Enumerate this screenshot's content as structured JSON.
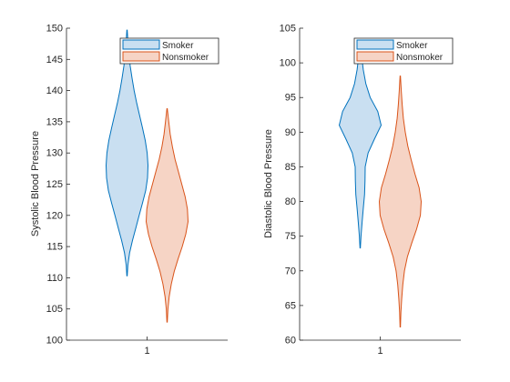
{
  "colors": {
    "smoker_edge": "#0072BD",
    "smoker_fill": "#C9DFF1",
    "nonsmoker_edge": "#D95319",
    "nonsmoker_fill": "#F6D4C5",
    "axis": "#262626"
  },
  "chart_data": [
    {
      "type": "violin",
      "ylabel": "Systolic Blood Pressure",
      "xlabel": "",
      "ylim": [
        100,
        150
      ],
      "yticks": [
        100,
        105,
        110,
        115,
        120,
        125,
        130,
        135,
        140,
        145,
        150
      ],
      "categories": [
        "1"
      ],
      "grid": false,
      "legend_position": "top-right",
      "series": [
        {
          "name": "Smoker",
          "side": "left",
          "profile": [
            [
              110.3,
              0.01
            ],
            [
              112,
              0.04
            ],
            [
              114,
              0.12
            ],
            [
              116,
              0.26
            ],
            [
              118,
              0.42
            ],
            [
              120,
              0.58
            ],
            [
              122,
              0.74
            ],
            [
              124,
              0.89
            ],
            [
              126,
              0.98
            ],
            [
              128,
              1.0
            ],
            [
              130,
              0.96
            ],
            [
              132,
              0.87
            ],
            [
              134,
              0.74
            ],
            [
              136,
              0.6
            ],
            [
              138,
              0.46
            ],
            [
              140,
              0.34
            ],
            [
              142,
              0.24
            ],
            [
              144,
              0.15
            ],
            [
              146,
              0.09
            ],
            [
              148,
              0.04
            ],
            [
              149.7,
              0.01
            ]
          ]
        },
        {
          "name": "Nonsmoker",
          "side": "right",
          "profile": [
            [
              102.9,
              0.01
            ],
            [
              105,
              0.04
            ],
            [
              107,
              0.1
            ],
            [
              109,
              0.2
            ],
            [
              111,
              0.34
            ],
            [
              113,
              0.52
            ],
            [
              115,
              0.72
            ],
            [
              117,
              0.89
            ],
            [
              119,
              1.0
            ],
            [
              121,
              0.97
            ],
            [
              123,
              0.86
            ],
            [
              125,
              0.7
            ],
            [
              127,
              0.54
            ],
            [
              129,
              0.38
            ],
            [
              131,
              0.25
            ],
            [
              133,
              0.15
            ],
            [
              135,
              0.08
            ],
            [
              137.1,
              0.01
            ]
          ]
        }
      ]
    },
    {
      "type": "violin",
      "ylabel": "Diastolic Blood Pressure",
      "xlabel": "",
      "ylim": [
        60,
        105
      ],
      "yticks": [
        60,
        65,
        70,
        75,
        80,
        85,
        90,
        95,
        100,
        105
      ],
      "categories": [
        "1"
      ],
      "grid": false,
      "legend_position": "top-right",
      "series": [
        {
          "name": "Smoker",
          "side": "left",
          "profile": [
            [
              73.3,
              0.01
            ],
            [
              75,
              0.04
            ],
            [
              77,
              0.09
            ],
            [
              79,
              0.15
            ],
            [
              81,
              0.21
            ],
            [
              83,
              0.23
            ],
            [
              85,
              0.24
            ],
            [
              87,
              0.38
            ],
            [
              89,
              0.68
            ],
            [
              91,
              1.0
            ],
            [
              93,
              0.84
            ],
            [
              95,
              0.48
            ],
            [
              97,
              0.27
            ],
            [
              99,
              0.15
            ],
            [
              101,
              0.07
            ],
            [
              102.5,
              0.01
            ]
          ]
        },
        {
          "name": "Nonsmoker",
          "side": "right",
          "profile": [
            [
              61.9,
              0.01
            ],
            [
              64,
              0.03
            ],
            [
              66,
              0.07
            ],
            [
              68,
              0.12
            ],
            [
              70,
              0.2
            ],
            [
              72,
              0.34
            ],
            [
              74,
              0.55
            ],
            [
              76,
              0.78
            ],
            [
              78,
              0.96
            ],
            [
              80,
              1.0
            ],
            [
              82,
              0.9
            ],
            [
              84,
              0.7
            ],
            [
              86,
              0.52
            ],
            [
              88,
              0.36
            ],
            [
              90,
              0.24
            ],
            [
              92,
              0.15
            ],
            [
              94,
              0.09
            ],
            [
              96,
              0.05
            ],
            [
              98.1,
              0.01
            ]
          ]
        }
      ]
    }
  ]
}
